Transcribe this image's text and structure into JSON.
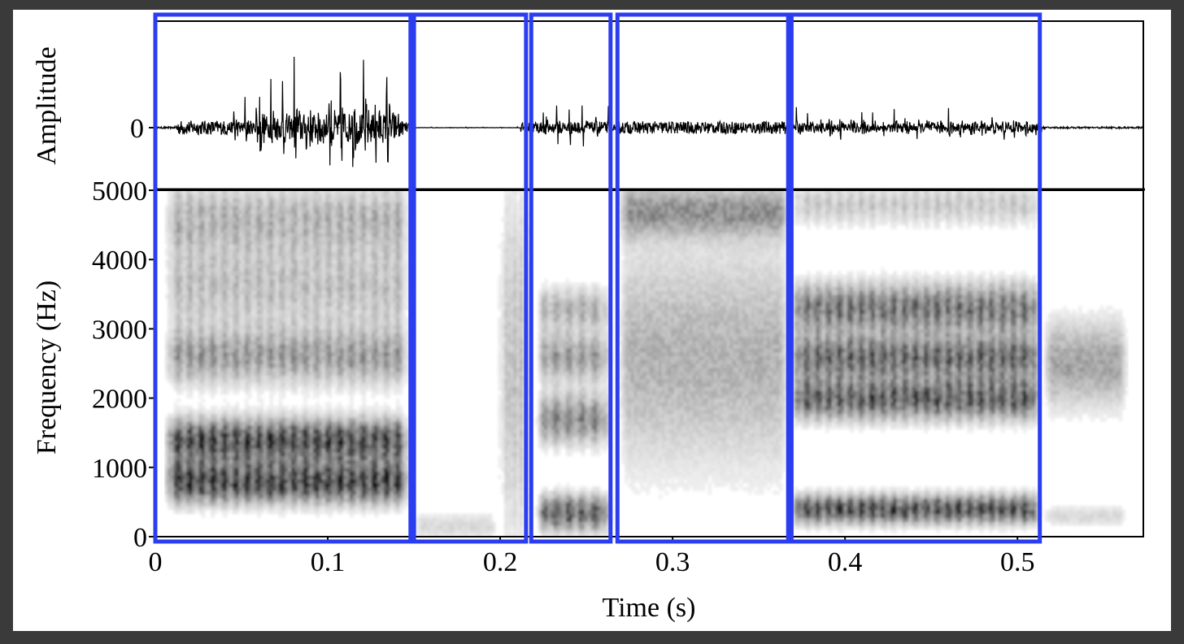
{
  "chart_data": [
    {
      "type": "line",
      "panel": "waveform",
      "title": "",
      "xlabel": "",
      "ylabel": "Amplitude",
      "xlim": [
        0,
        0.573
      ],
      "yticks": [
        {
          "value": 0,
          "label": "0"
        }
      ],
      "baseline_dotted": true,
      "series": [
        {
          "segments": [
            {
              "t0": 0.0,
              "t1": 0.012,
              "amp": 0.01,
              "period": 0.004
            },
            {
              "t0": 0.012,
              "t1": 0.04,
              "amp": 0.08,
              "period": 0.004
            },
            {
              "t0": 0.04,
              "t1": 0.06,
              "amp": 0.38,
              "period": 0.0065
            },
            {
              "t0": 0.06,
              "t1": 0.08,
              "amp": 0.75,
              "period": 0.0067
            },
            {
              "t0": 0.08,
              "t1": 0.14,
              "amp": 0.98,
              "period": 0.0067
            },
            {
              "t0": 0.14,
              "t1": 0.148,
              "amp": 0.35,
              "period": 0.0067
            },
            {
              "t0": 0.148,
              "t1": 0.212,
              "amp": 0.01,
              "period": 0.01
            },
            {
              "t0": 0.212,
              "t1": 0.22,
              "amp": 0.06,
              "period": 0.004
            },
            {
              "t0": 0.22,
              "t1": 0.265,
              "amp": 0.38,
              "period": 0.0075
            },
            {
              "t0": 0.265,
              "t1": 0.268,
              "amp": 0.03,
              "period": 0.004
            },
            {
              "t0": 0.268,
              "t1": 0.368,
              "amp": 0.07,
              "period": 0.0015
            },
            {
              "t0": 0.368,
              "t1": 0.514,
              "amp": 0.3,
              "period": 0.0063
            },
            {
              "t0": 0.514,
              "t1": 0.573,
              "amp": 0.01,
              "period": 0.004
            }
          ]
        }
      ]
    },
    {
      "type": "heatmap",
      "panel": "spectrogram",
      "title": "",
      "xlabel": "Time (s)",
      "ylabel": "Frequency (Hz)",
      "xlim": [
        0,
        0.573
      ],
      "ylim": [
        0,
        5000
      ],
      "xticks": [
        {
          "value": 0,
          "label": "0"
        },
        {
          "value": 0.1,
          "label": "0.1"
        },
        {
          "value": 0.2,
          "label": "0.2"
        },
        {
          "value": 0.3,
          "label": "0.3"
        },
        {
          "value": 0.4,
          "label": "0.4"
        },
        {
          "value": 0.5,
          "label": "0.5"
        }
      ],
      "yticks": [
        {
          "value": 0,
          "label": "0"
        },
        {
          "value": 1000,
          "label": "1000"
        },
        {
          "value": 2000,
          "label": "2000"
        },
        {
          "value": 3000,
          "label": "3000"
        },
        {
          "value": 4000,
          "label": "4000"
        },
        {
          "value": 5000,
          "label": "5000"
        }
      ],
      "colormap": "white-to-black",
      "regions": [
        {
          "t0": 0.005,
          "t1": 0.148,
          "bands": [
            {
              "f": 800,
              "bw": 300,
              "i": 0.9
            },
            {
              "f": 1400,
              "bw": 300,
              "i": 0.85
            },
            {
              "f": 2600,
              "bw": 400,
              "i": 0.45
            },
            {
              "f": 3600,
              "bw": 600,
              "i": 0.3
            },
            {
              "f": 4600,
              "bw": 500,
              "i": 0.35
            }
          ],
          "striations": 0.0067
        },
        {
          "t0": 0.148,
          "t1": 0.2,
          "bands": [
            {
              "f": 150,
              "bw": 200,
              "i": 0.15
            }
          ],
          "striations": 0
        },
        {
          "t0": 0.198,
          "t1": 0.218,
          "bands": [
            {
              "f": 2500,
              "bw": 2500,
              "i": 0.3
            }
          ],
          "striations": 0.004
        },
        {
          "t0": 0.22,
          "t1": 0.265,
          "bands": [
            {
              "f": 350,
              "bw": 250,
              "i": 0.75
            },
            {
              "f": 1700,
              "bw": 350,
              "i": 0.55
            },
            {
              "f": 2600,
              "bw": 350,
              "i": 0.45
            },
            {
              "f": 3300,
              "bw": 300,
              "i": 0.35
            }
          ],
          "striations": 0.0075
        },
        {
          "t0": 0.268,
          "t1": 0.368,
          "bands": [
            {
              "f": 2600,
              "bw": 1500,
              "i": 0.3
            },
            {
              "f": 4700,
              "bw": 350,
              "i": 0.4
            }
          ],
          "striations": 0
        },
        {
          "t0": 0.368,
          "t1": 0.514,
          "bands": [
            {
              "f": 400,
              "bw": 200,
              "i": 0.85
            },
            {
              "f": 2000,
              "bw": 300,
              "i": 0.75
            },
            {
              "f": 2600,
              "bw": 300,
              "i": 0.7
            },
            {
              "f": 3300,
              "bw": 350,
              "i": 0.65
            },
            {
              "f": 4800,
              "bw": 300,
              "i": 0.25
            }
          ],
          "striations": 0.0063
        },
        {
          "t0": 0.514,
          "t1": 0.565,
          "bands": [
            {
              "f": 2500,
              "bw": 600,
              "i": 0.35
            },
            {
              "f": 300,
              "bw": 150,
              "i": 0.15
            }
          ],
          "striations": 0
        }
      ],
      "annotations": {
        "type": "rect-outline",
        "color": "#2b3df0",
        "spans": [
          [
            0.0,
            0.148
          ],
          [
            0.15,
            0.215
          ],
          [
            0.218,
            0.264
          ],
          [
            0.268,
            0.367
          ],
          [
            0.369,
            0.513
          ]
        ]
      }
    }
  ]
}
